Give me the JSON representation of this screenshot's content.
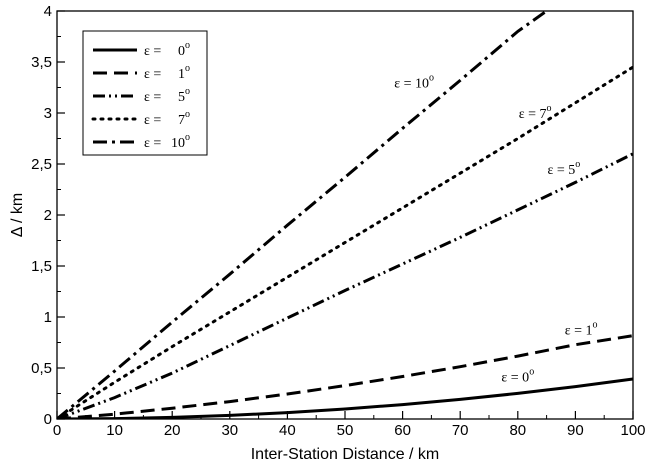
{
  "chart_data": {
    "type": "line",
    "xlabel": "Inter-Station Distance / km",
    "ylabel": "Δ / km",
    "xlim": [
      0,
      100
    ],
    "ylim": [
      0,
      4
    ],
    "grid": false,
    "legend_position": "top-left",
    "x_ticks": [
      "0",
      "10",
      "20",
      "30",
      "40",
      "50",
      "60",
      "70",
      "80",
      "90",
      "100"
    ],
    "y_ticks": [
      "0",
      "0,5",
      "1",
      "1,5",
      "2",
      "2,5",
      "3",
      "3,5",
      "4"
    ],
    "series": [
      {
        "name": "ε = 0°",
        "eps": 0,
        "dash": "solid",
        "x": [
          0,
          10,
          20,
          30,
          40,
          50,
          60,
          70,
          80,
          90,
          100
        ],
        "y": [
          0,
          0.004,
          0.016,
          0.035,
          0.063,
          0.098,
          0.141,
          0.192,
          0.251,
          0.318,
          0.392
        ]
      },
      {
        "name": "ε = 1°",
        "eps": 1,
        "dash": "dash",
        "x": [
          0,
          10,
          20,
          30,
          40,
          50,
          60,
          70,
          80,
          90,
          100
        ],
        "y": [
          0,
          0.047,
          0.106,
          0.171,
          0.245,
          0.327,
          0.417,
          0.513,
          0.617,
          0.728,
          0.817
        ]
      },
      {
        "name": "ε = 5°",
        "eps": 5,
        "dash": "dashdotdot",
        "x": [
          0,
          10,
          20,
          30,
          40,
          50,
          60,
          70,
          80,
          90,
          100
        ],
        "y": [
          0,
          0.21,
          0.45,
          0.72,
          0.99,
          1.26,
          1.52,
          1.78,
          2.05,
          2.32,
          2.6
        ]
      },
      {
        "name": "ε = 7°",
        "eps": 7,
        "dash": "dot",
        "x": [
          0,
          10,
          20,
          30,
          40,
          50,
          60,
          70,
          80,
          90,
          100
        ],
        "y": [
          0,
          0.36,
          0.71,
          1.05,
          1.39,
          1.73,
          2.07,
          2.41,
          2.75,
          3.1,
          3.45
        ]
      },
      {
        "name": "ε = 10°",
        "eps": 10,
        "dash": "dashdot",
        "x": [
          0,
          10,
          20,
          30,
          40,
          50,
          60,
          70,
          80,
          85
        ],
        "y": [
          0,
          0.47,
          0.95,
          1.42,
          1.9,
          2.37,
          2.85,
          3.32,
          3.8,
          4.0
        ]
      }
    ],
    "annotations": [
      {
        "text": "ε = 10°",
        "eps": "10",
        "x": 62,
        "y": 3.25
      },
      {
        "text": "ε = 7°",
        "eps": "7",
        "x": 83,
        "y": 2.95
      },
      {
        "text": "ε = 5°",
        "eps": "5",
        "x": 88,
        "y": 2.4
      },
      {
        "text": "ε = 1°",
        "eps": "1",
        "x": 91,
        "y": 0.83
      },
      {
        "text": "ε = 0°",
        "eps": "0",
        "x": 80,
        "y": 0.37
      }
    ]
  }
}
